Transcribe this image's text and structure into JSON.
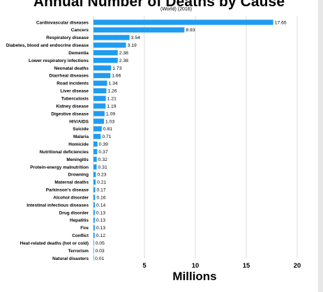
{
  "chart_data": {
    "type": "bar",
    "orientation": "horizontal",
    "title": "Annual Number of Deaths by Cause",
    "subtitle": "(World) (2016)",
    "xlabel": "Millions",
    "ylabel": "",
    "xlim": [
      0,
      21
    ],
    "xticks": [
      "5",
      "10",
      "15",
      "20"
    ],
    "grid": "vertical",
    "bar_color": "#1f9cf0",
    "categories": [
      "Cardiovascular diseases",
      "Cancers",
      "Respiratory disease",
      "Diabetes, blood and endocrine disease",
      "Dementia",
      "Lower respiratory infections",
      "Neonatal deaths",
      "Diarrheal diseases",
      "Road incidents",
      "Liver disease",
      "Tuberculosis",
      "Kidney disease",
      "Digestive disease",
      "HIV/AIDS",
      "Suicide",
      "Malaria",
      "Homicide",
      "Nutritional deficiencies",
      "Meningitis",
      "Protein-energy malnutrition",
      "Drowning",
      "Maternal deaths",
      "Parkinson's disease",
      "Alcohol disorder",
      "Intestinal infectious diseases",
      "Drug disorder",
      "Hepatitis",
      "Fire",
      "Conflict",
      "Heat-related deaths (hot or cold)",
      "Terrorism",
      "Natural disasters"
    ],
    "values": [
      17.65,
      8.93,
      3.54,
      3.19,
      2.38,
      2.38,
      1.73,
      1.66,
      1.34,
      1.26,
      1.21,
      1.19,
      1.09,
      1.03,
      0.81,
      0.71,
      0.39,
      0.37,
      0.32,
      0.31,
      0.23,
      0.21,
      0.17,
      0.16,
      0.14,
      0.13,
      0.13,
      0.13,
      0.12,
      0.05,
      0.03,
      0.01
    ],
    "value_labels": [
      "17.65",
      "8.93",
      "3.54",
      "3.19",
      "2.38",
      "2.38",
      "1.73",
      "1.66",
      "1.34",
      "1.26",
      "1.21",
      "1.19",
      "1.09",
      "1.03",
      "0.81",
      "0.71",
      "0.39",
      "0.37",
      "0.32",
      "0.31",
      "0.23",
      "0.21",
      "0.17",
      "0.16",
      "0.14",
      "0.13",
      "0.13",
      "0.13",
      "0.12",
      "0.05",
      "0.03",
      "0.01"
    ]
  }
}
